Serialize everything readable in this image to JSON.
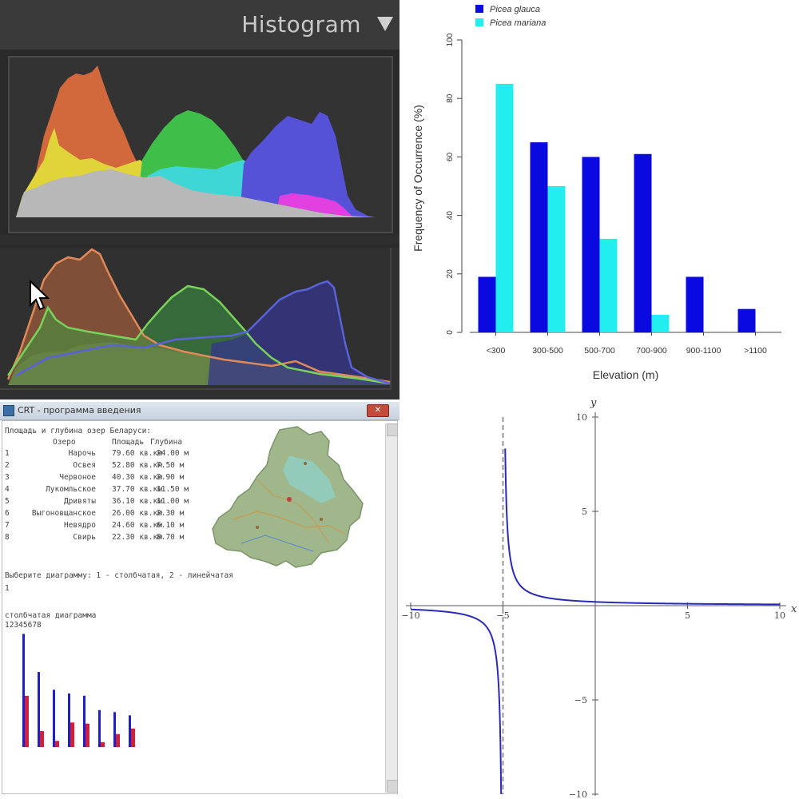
{
  "histogram_panel": {
    "title": "Histogram",
    "colors": {
      "red": "#d2693c",
      "green": "#3fbf4a",
      "blue": "#5552d8",
      "yellow": "#e0d43a",
      "cyan": "#3fd6d6",
      "magenta": "#e040e0",
      "gray": "#b8b8b8"
    }
  },
  "chart_data": [
    {
      "type": "bar",
      "categories": [
        "<300",
        "300-500",
        "500-700",
        "700-900",
        "900-1100",
        ">1100"
      ],
      "series": [
        {
          "name": "Picea glauca",
          "values": [
            19,
            65,
            60,
            61,
            19,
            8
          ],
          "color": "#0a0ae0"
        },
        {
          "name": "Picea mariana",
          "values": [
            85,
            50,
            32,
            6,
            0,
            0
          ],
          "color": "#22eef0"
        }
      ],
      "xlabel": "Elevation (m)",
      "ylabel": "Frequency of Occurrence (%)",
      "ylim": [
        0,
        100
      ],
      "yticks": [
        "0",
        "20",
        "40",
        "60",
        "80",
        "100"
      ],
      "legend": "top-left"
    },
    {
      "type": "line",
      "function": "y = 1/(x+5)",
      "xlim": [
        -10,
        10
      ],
      "ylim": [
        -10,
        10
      ],
      "xticks": [
        "-10",
        "-5",
        "5",
        "10"
      ],
      "yticks": [
        "10",
        "5",
        "-5",
        "-10"
      ],
      "xlabel": "x",
      "ylabel": "y",
      "asymptote_x": -5,
      "color": "#2a2ab8"
    },
    {
      "type": "bar",
      "series": [
        {
          "name": "Площадь",
          "values": [
            79.6,
            52.8,
            40.3,
            37.7,
            36.1,
            26.0,
            24.6,
            22.3
          ],
          "color": "#2020c8"
        },
        {
          "name": "Глубина",
          "values": [
            24.0,
            7.5,
            2.9,
            11.5,
            11.0,
            2.3,
            6.1,
            8.7
          ],
          "color": "#d0203a"
        }
      ]
    }
  ],
  "crt_window": {
    "title": "CRT - программа введения",
    "heading": "Площадь и глубина озер Беларуси:",
    "columns": [
      "Озеро",
      "Площадь",
      "Глубина"
    ],
    "rows": [
      [
        "1",
        "Нарочь",
        "79.60 кв.км",
        "24.00 м"
      ],
      [
        "2",
        "Освея",
        "52.80 кв.км",
        "7.50 м"
      ],
      [
        "3",
        "Червоное",
        "40.30 кв.км",
        "2.90 м"
      ],
      [
        "4",
        "Лукомльское",
        "37.70 кв.км",
        "11.50 м"
      ],
      [
        "5",
        "Дривяты",
        "36.10 кв.км",
        "11.00 м"
      ],
      [
        "6",
        "Выгоновщанское",
        "26.00 кв.км",
        "2.30 м"
      ],
      [
        "7",
        "Невядро",
        "24.60 кв.км",
        "6.10 м"
      ],
      [
        "8",
        "Свирь",
        "22.30 кв.км",
        "8.70 м"
      ]
    ],
    "prompt": "Выберите диаграмму: 1 - столбчатая, 2 - линейчатая",
    "input_value": "1",
    "chart_caption": "столбчатая диаграмма",
    "chart_index_label": "12345678"
  }
}
